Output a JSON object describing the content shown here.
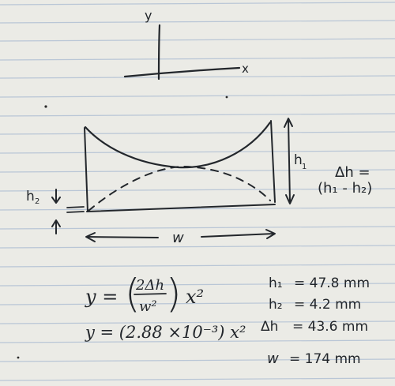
{
  "axes": {
    "y_label": "y",
    "x_label": "x"
  },
  "diagram": {
    "h1_label": "h",
    "h1_sub": "1",
    "h2_label": "h",
    "h2_sub": "2",
    "w_label": "w",
    "dh_label": "Δh =",
    "dh_def": "(h₁ - h₂)"
  },
  "equations": {
    "eq1_lhs": "y =",
    "eq1_num": "2Δh",
    "eq1_den": "w²",
    "eq1_rhs": "x²",
    "eq2": "y = (2.88 ×10⁻³) x²"
  },
  "measurements": [
    {
      "label": "h₁",
      "value": "= 47.8 mm"
    },
    {
      "label": "h₂",
      "value": "= 4.2 mm"
    },
    {
      "label": "Δh",
      "value": "= 43.6 mm"
    },
    {
      "label": "w",
      "value": "= 174 mm"
    }
  ],
  "colors": {
    "paper": "#ebebe6",
    "rule_line": "#b9c6d6",
    "margin_line": "#d9b3b8",
    "ink": "#23272c"
  }
}
